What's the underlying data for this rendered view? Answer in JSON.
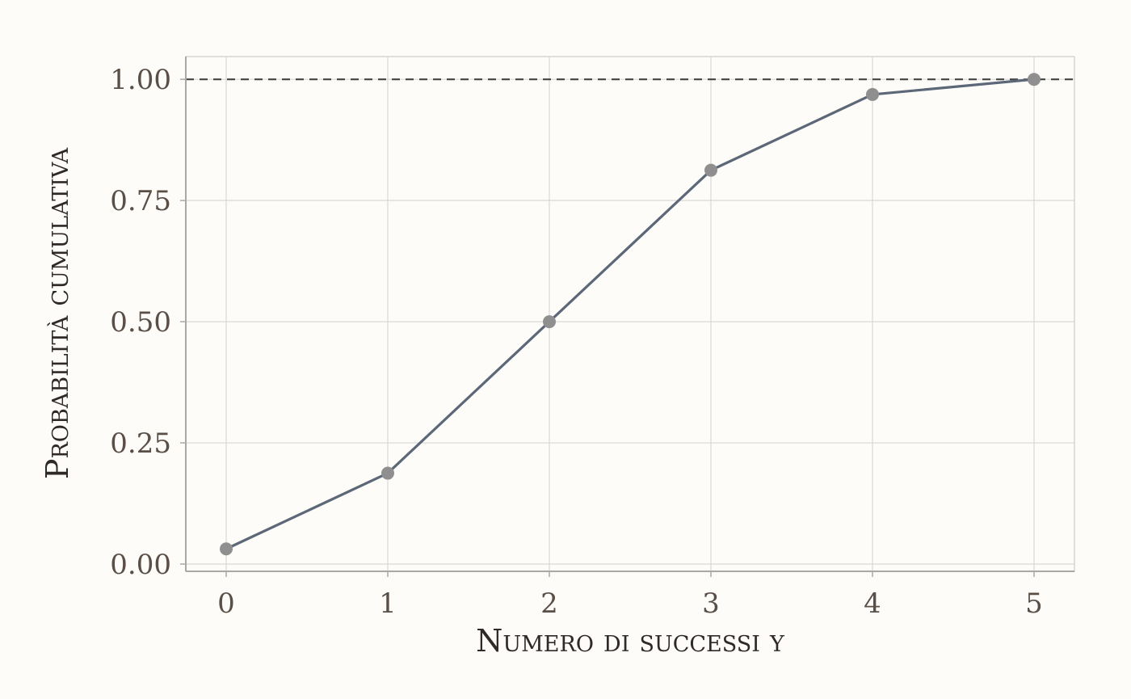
{
  "chart_data": {
    "type": "line",
    "title": "",
    "xlabel": "Numero di successi y",
    "ylabel": "Probabilità cumulativa",
    "x": [
      0,
      1,
      2,
      3,
      4,
      5
    ],
    "x_tick_labels": [
      "0",
      "1",
      "2",
      "3",
      "4",
      "5"
    ],
    "y_tick_values": [
      0,
      0.25,
      0.5,
      0.75,
      1.0
    ],
    "y_tick_labels": [
      "0.00",
      "0.25",
      "0.50",
      "0.75",
      "1.00"
    ],
    "series": [
      {
        "values": [
          0.03125,
          0.1875,
          0.5,
          0.8125,
          0.96875,
          1.0
        ]
      }
    ],
    "reference_line": {
      "y": 1.0,
      "style": "dashed"
    },
    "xlim": [
      -0.25,
      5.25
    ],
    "ylim": [
      -0.015,
      1.047
    ],
    "grid": true,
    "legend": "none",
    "colors": {
      "line": "#5c6778",
      "points": "#8f8f8f",
      "reference": "#444444",
      "background": "#fdfcf9"
    }
  }
}
